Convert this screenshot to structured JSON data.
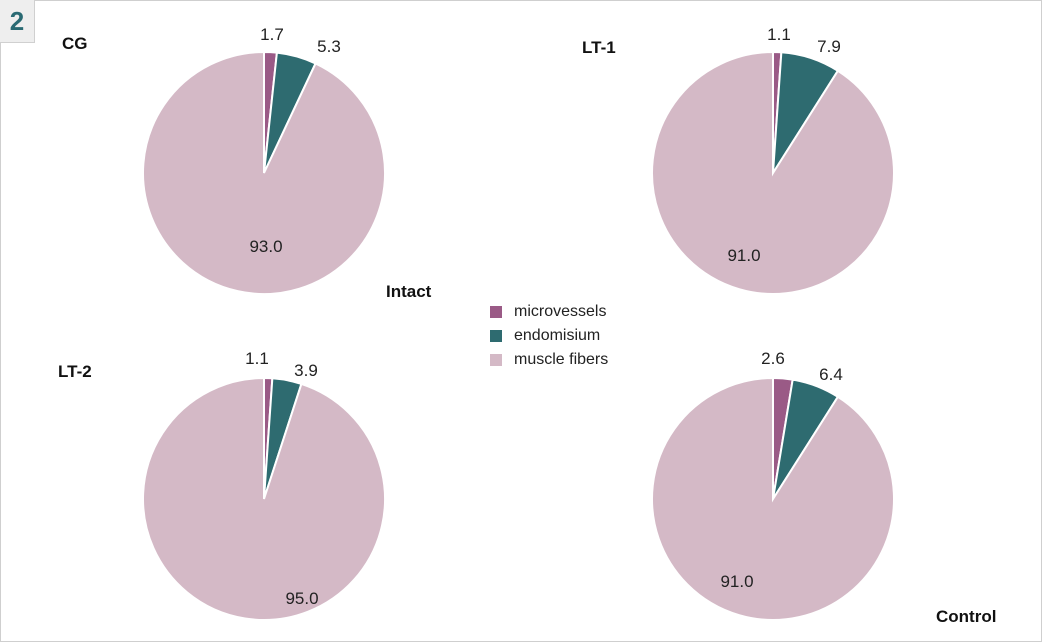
{
  "panel_number": "2",
  "group_labels": {
    "intact": "Intact",
    "control": "Control"
  },
  "legend": [
    {
      "label": "microvessels",
      "color": "#9a5a86"
    },
    {
      "label": "endomisium",
      "color": "#2e6b70"
    },
    {
      "label": "muscle fibers",
      "color": "#d4b9c6"
    }
  ],
  "chart_data": [
    {
      "type": "pie",
      "title": "CG",
      "categories": [
        "microvessels",
        "endomisium",
        "muscle fibers"
      ],
      "values": [
        1.7,
        5.3,
        93.0
      ],
      "labels": [
        "1.7",
        "5.3",
        "93.0"
      ]
    },
    {
      "type": "pie",
      "title": "LT-1",
      "categories": [
        "microvessels",
        "endomisium",
        "muscle fibers"
      ],
      "values": [
        1.1,
        7.9,
        91.0
      ],
      "labels": [
        "1.1",
        "7.9",
        "91.0"
      ]
    },
    {
      "type": "pie",
      "title": "LT-2",
      "categories": [
        "microvessels",
        "endomisium",
        "muscle fibers"
      ],
      "values": [
        1.1,
        3.9,
        95.0
      ],
      "labels": [
        "1.1",
        "3.9",
        "95.0"
      ]
    },
    {
      "type": "pie",
      "title": "",
      "categories": [
        "microvessels",
        "endomisium",
        "muscle fibers"
      ],
      "values": [
        2.6,
        6.4,
        91.0
      ],
      "labels": [
        "2.6",
        "6.4",
        "91.0"
      ]
    }
  ]
}
